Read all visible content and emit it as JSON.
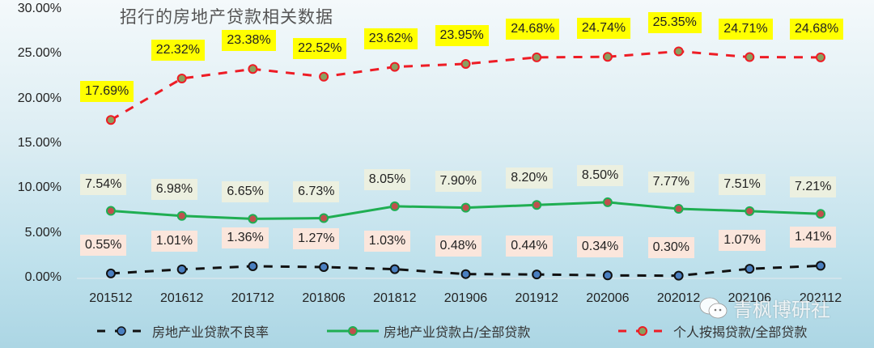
{
  "chart_data": {
    "type": "line",
    "title": "招行的房地产贷款相关数据",
    "categories": [
      "201512",
      "201612",
      "201712",
      "201806",
      "201812",
      "201906",
      "201912",
      "202006",
      "202012",
      "202106",
      "202112"
    ],
    "series": [
      {
        "name": "房地产业贷款不良率",
        "style": "dashed",
        "color": "#111111",
        "marker_color": "#4a7fc0",
        "values": [
          0.55,
          1.01,
          1.36,
          1.27,
          1.03,
          0.48,
          0.44,
          0.34,
          0.3,
          1.07,
          1.41
        ],
        "labels": [
          "0.55%",
          "1.01%",
          "1.36%",
          "1.27%",
          "1.03%",
          "0.48%",
          "0.44%",
          "0.34%",
          "0.30%",
          "1.07%",
          "1.41%"
        ]
      },
      {
        "name": "房地产业贷款占/全部贷款",
        "style": "solid",
        "color": "#1fae52",
        "marker_color": "#c0504d",
        "values": [
          7.54,
          6.98,
          6.65,
          6.73,
          8.05,
          7.9,
          8.2,
          8.5,
          7.77,
          7.51,
          7.21
        ],
        "labels": [
          "7.54%",
          "6.98%",
          "6.65%",
          "6.73%",
          "8.05%",
          "7.90%",
          "8.20%",
          "8.50%",
          "7.77%",
          "7.51%",
          "7.21%"
        ]
      },
      {
        "name": "个人按揭贷款/全部贷款",
        "style": "dashed",
        "color": "#ee1c25",
        "marker_color": "#8aa060",
        "values": [
          17.69,
          22.32,
          23.38,
          22.52,
          23.62,
          23.95,
          24.68,
          24.74,
          25.35,
          24.71,
          24.68
        ],
        "labels": [
          "17.69%",
          "22.32%",
          "23.38%",
          "22.52%",
          "23.62%",
          "23.95%",
          "24.68%",
          "24.74%",
          "25.35%",
          "24.71%",
          "24.68%"
        ]
      }
    ],
    "xlabel": "",
    "ylabel": "",
    "ylim": [
      0,
      30
    ],
    "yticks": [
      "0.00%",
      "5.00%",
      "10.00%",
      "15.00%",
      "20.00%",
      "25.00%",
      "30.00%"
    ],
    "grid": false,
    "legend_position": "bottom"
  },
  "watermark": "青枫博研社"
}
